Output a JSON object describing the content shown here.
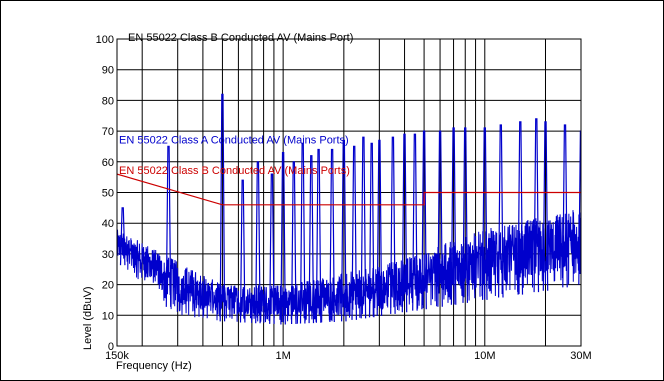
{
  "chart_data": {
    "type": "line",
    "title": "EN 55022 Class B Conducted AV (Mains Port)",
    "xlabel": "Frequency (Hz)",
    "ylabel": "Level (dBuV)",
    "x_scale": "log",
    "xlim": [
      150000,
      30000000
    ],
    "ylim": [
      0,
      100
    ],
    "grid": true,
    "y_ticks": [
      0,
      10,
      20,
      30,
      40,
      50,
      60,
      70,
      80,
      90,
      100
    ],
    "x_tick_labels": [
      {
        "value": 150000,
        "label": "150k"
      },
      {
        "value": 1000000,
        "label": "1M"
      },
      {
        "value": 10000000,
        "label": "10M"
      },
      {
        "value": 30000000,
        "label": "30M"
      }
    ],
    "series": [
      {
        "name": "EN 55022 Class A Conducted AV (Mains Ports)",
        "color": "#0000cc",
        "type": "measurement",
        "peaks": [
          {
            "f": 160000,
            "v": 45
          },
          {
            "f": 270000,
            "v": 65
          },
          {
            "f": 500000,
            "v": 82
          },
          {
            "f": 630000,
            "v": 54
          },
          {
            "f": 750000,
            "v": 60
          },
          {
            "f": 880000,
            "v": 56
          },
          {
            "f": 1000000,
            "v": 63
          },
          {
            "f": 1130000,
            "v": 60
          },
          {
            "f": 1250000,
            "v": 66
          },
          {
            "f": 1380000,
            "v": 62
          },
          {
            "f": 1500000,
            "v": 64
          },
          {
            "f": 1750000,
            "v": 64
          },
          {
            "f": 2000000,
            "v": 67
          },
          {
            "f": 2250000,
            "v": 65
          },
          {
            "f": 2500000,
            "v": 68
          },
          {
            "f": 2750000,
            "v": 66
          },
          {
            "f": 3000000,
            "v": 67
          },
          {
            "f": 3500000,
            "v": 68
          },
          {
            "f": 4000000,
            "v": 69
          },
          {
            "f": 4500000,
            "v": 69
          },
          {
            "f": 5000000,
            "v": 70
          },
          {
            "f": 6000000,
            "v": 70
          },
          {
            "f": 7000000,
            "v": 71
          },
          {
            "f": 8000000,
            "v": 71
          },
          {
            "f": 10000000,
            "v": 71
          },
          {
            "f": 12000000,
            "v": 72
          },
          {
            "f": 15000000,
            "v": 73
          },
          {
            "f": 18000000,
            "v": 74
          },
          {
            "f": 20000000,
            "v": 73
          },
          {
            "f": 25000000,
            "v": 72
          },
          {
            "f": 30000000,
            "v": 70
          }
        ],
        "floor": [
          {
            "f": 150000,
            "v": 28
          },
          {
            "f": 300000,
            "v": 10
          },
          {
            "f": 500000,
            "v": 8
          },
          {
            "f": 1000000,
            "v": 7
          },
          {
            "f": 2000000,
            "v": 8
          },
          {
            "f": 5000000,
            "v": 12
          },
          {
            "f": 10000000,
            "v": 15
          },
          {
            "f": 20000000,
            "v": 18
          },
          {
            "f": 30000000,
            "v": 20
          }
        ],
        "band_top": [
          {
            "f": 150000,
            "v": 38
          },
          {
            "f": 500000,
            "v": 20
          },
          {
            "f": 1000000,
            "v": 20
          },
          {
            "f": 3000000,
            "v": 26
          },
          {
            "f": 10000000,
            "v": 38
          },
          {
            "f": 30000000,
            "v": 45
          }
        ]
      },
      {
        "name": "EN 55022 Class B Conducted AV (Mains Ports)",
        "color": "#cc0000",
        "type": "limit",
        "x": [
          150000,
          500000,
          5000000,
          5000000,
          30000000
        ],
        "y": [
          56,
          46,
          46,
          50,
          50
        ]
      }
    ]
  }
}
